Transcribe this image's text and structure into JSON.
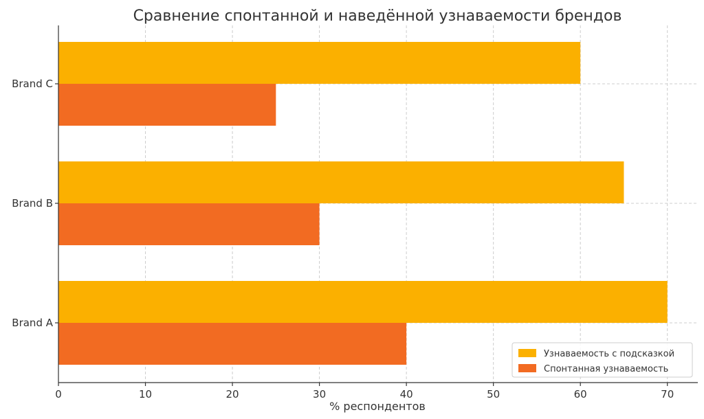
{
  "chart_data": {
    "type": "bar",
    "orientation": "horizontal",
    "title": "Сравнение спонтанной и наведённой узнаваемости брендов",
    "xlabel": "% респондентов",
    "ylabel": "",
    "categories": [
      "Brand A",
      "Brand B",
      "Brand C"
    ],
    "series": [
      {
        "name": "Спонтанная узнаваемость",
        "values": [
          40,
          30,
          25
        ],
        "color": "#F26B22"
      },
      {
        "name": "Узнаваемость с подсказкой",
        "values": [
          70,
          65,
          60
        ],
        "color": "#FBB000"
      }
    ],
    "xlim": [
      0,
      73.5
    ],
    "xticks": [
      0,
      10,
      20,
      30,
      40,
      50,
      60,
      70
    ],
    "grid": true,
    "legend_position": "bottom-right",
    "legend_order": [
      "Узнаваемость с подсказкой",
      "Спонтанная узнаваемость"
    ]
  }
}
